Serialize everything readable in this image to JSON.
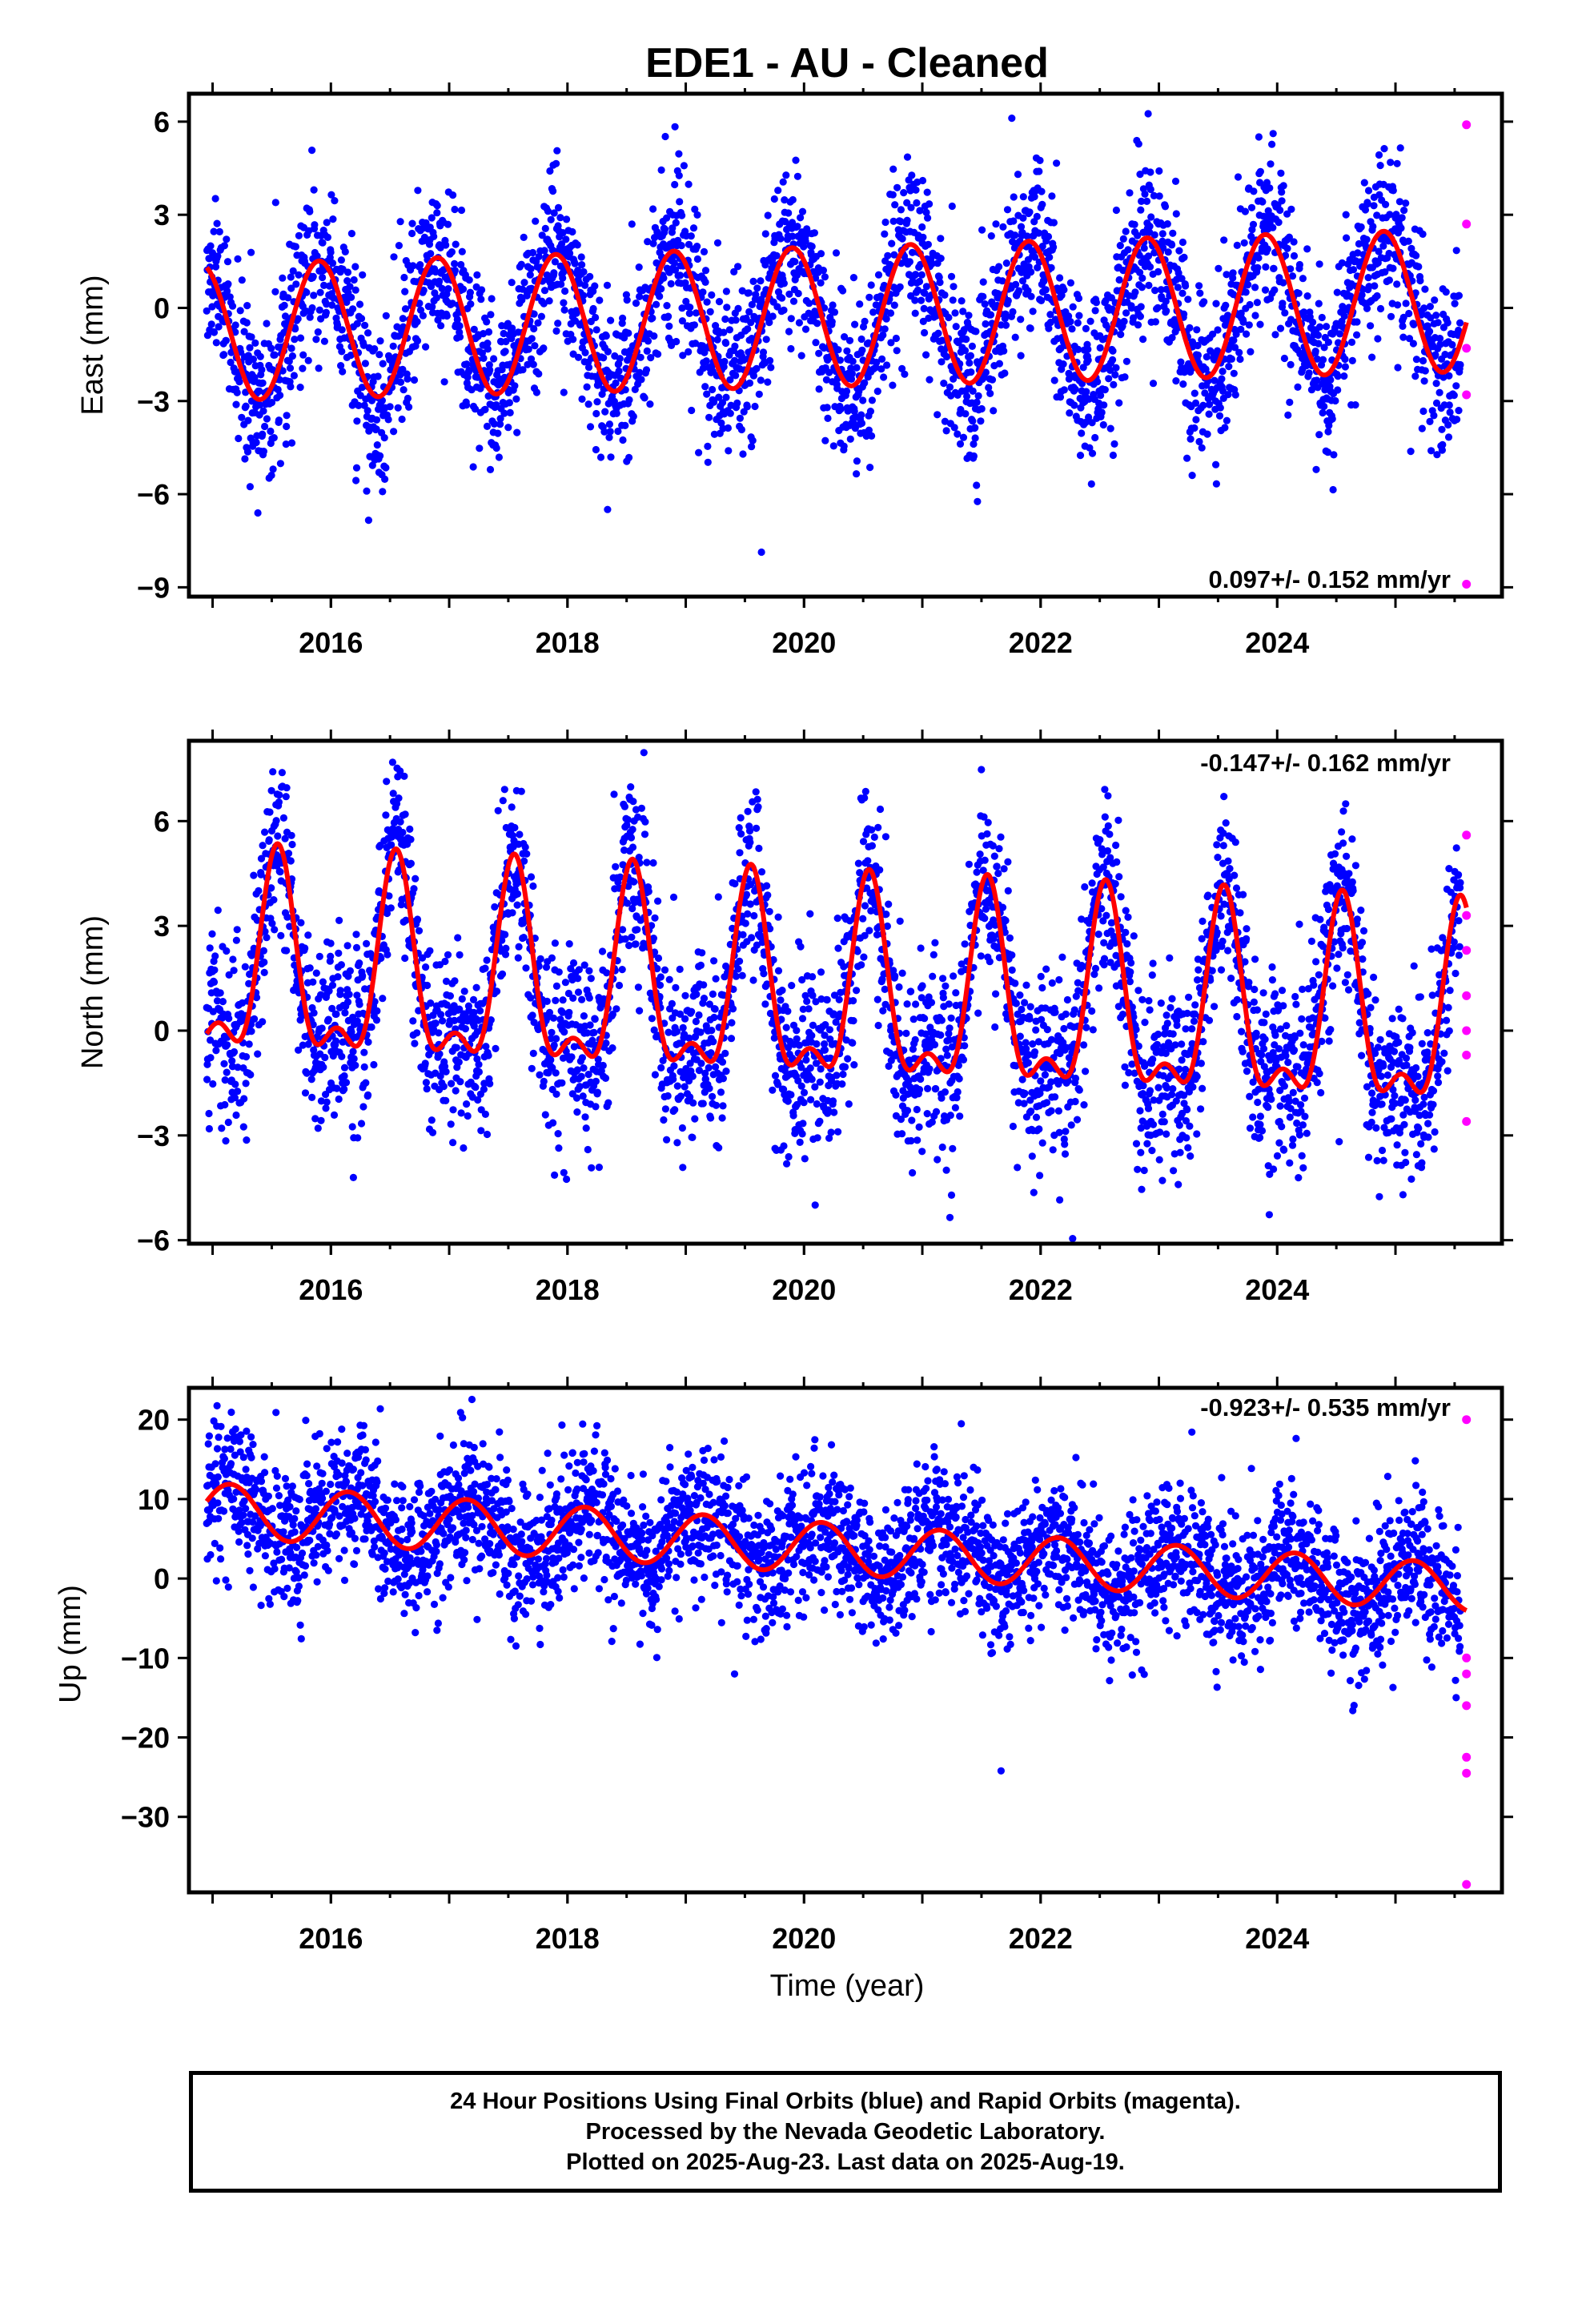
{
  "title": "EDE1  - AU - Cleaned",
  "xlabel": "Time (year)",
  "footer": {
    "line1": "24 Hour Positions Using Final Orbits (blue) and Rapid Orbits (magenta).",
    "line2": "Processed by the Nevada Geodetic Laboratory.",
    "line3": "Plotted on 2025-Aug-23. Last data on 2025-Aug-19."
  },
  "colors": {
    "final": "#0000ff",
    "rapid": "#ff00ff",
    "model": "#ff0000",
    "axis": "#000000"
  },
  "chart_data": [
    {
      "type": "scatter",
      "component": "east",
      "ylabel": "East (mm)",
      "rate_text": "0.097+/- 0.152 mm/yr",
      "xlim": [
        2014.8,
        2025.9
      ],
      "ylim": [
        -9.3,
        6.9
      ],
      "xticks": [
        2016,
        2018,
        2020,
        2022,
        2024
      ],
      "yticks": [
        -9,
        -6,
        -3,
        0,
        3,
        6
      ],
      "model": {
        "offset": -0.3,
        "trend": 0.097,
        "amp_start": 2.2,
        "amp_end": 2.3,
        "phase_peak": 0.9,
        "half_amp": 0.0
      },
      "noise_sd": 1.35,
      "rapid_points": [
        [
          2025.6,
          5.9
        ],
        [
          2025.6,
          2.7
        ],
        [
          2025.6,
          -1.3
        ],
        [
          2025.6,
          -2.8
        ],
        [
          2025.6,
          -8.9
        ]
      ],
      "final_range": [
        2014.95,
        2025.55
      ]
    },
    {
      "type": "scatter",
      "component": "north",
      "ylabel": "North (mm)",
      "rate_text": "-0.147+/- 0.162 mm/yr",
      "xlim": [
        2014.8,
        2025.9
      ],
      "ylim": [
        -6.1,
        8.3
      ],
      "xticks": [
        2016,
        2018,
        2020,
        2022,
        2024
      ],
      "yticks": [
        -6,
        -3,
        0,
        3,
        6
      ],
      "model": {
        "offset": 0.9,
        "trend": -0.147,
        "amp_start": 2.6,
        "amp_end": 2.6,
        "phase_peak": 0.55,
        "half_amp": 1.2
      },
      "noise_sd": 1.3,
      "rapid_points": [
        [
          2025.6,
          5.6
        ],
        [
          2025.6,
          3.3
        ],
        [
          2025.6,
          2.3
        ],
        [
          2025.6,
          1.0
        ],
        [
          2025.6,
          0.0
        ],
        [
          2025.6,
          -0.7
        ],
        [
          2025.6,
          -2.6
        ]
      ],
      "final_range": [
        2014.95,
        2025.55
      ]
    },
    {
      "type": "scatter",
      "component": "up",
      "ylabel": "Up (mm)",
      "rate_text": "-0.923+/- 0.535 mm/yr",
      "xlim": [
        2014.8,
        2025.9
      ],
      "ylim": [
        -39.5,
        24
      ],
      "xticks": [
        2016,
        2018,
        2020,
        2022,
        2024
      ],
      "yticks": [
        -30,
        -20,
        -10,
        0,
        10,
        20
      ],
      "model": {
        "offset": 4.0,
        "trend": -0.923,
        "amp_start": 3.4,
        "amp_end": 3.0,
        "phase_peak": 0.15,
        "half_amp": 0.0
      },
      "noise_sd": 4.3,
      "rapid_points": [
        [
          2025.6,
          20.0
        ],
        [
          2025.6,
          -10.0
        ],
        [
          2025.6,
          -12.0
        ],
        [
          2025.6,
          -16.0
        ],
        [
          2025.6,
          -22.5
        ],
        [
          2025.6,
          -24.5
        ],
        [
          2025.6,
          -38.5
        ]
      ],
      "final_range": [
        2014.95,
        2025.55
      ]
    }
  ]
}
